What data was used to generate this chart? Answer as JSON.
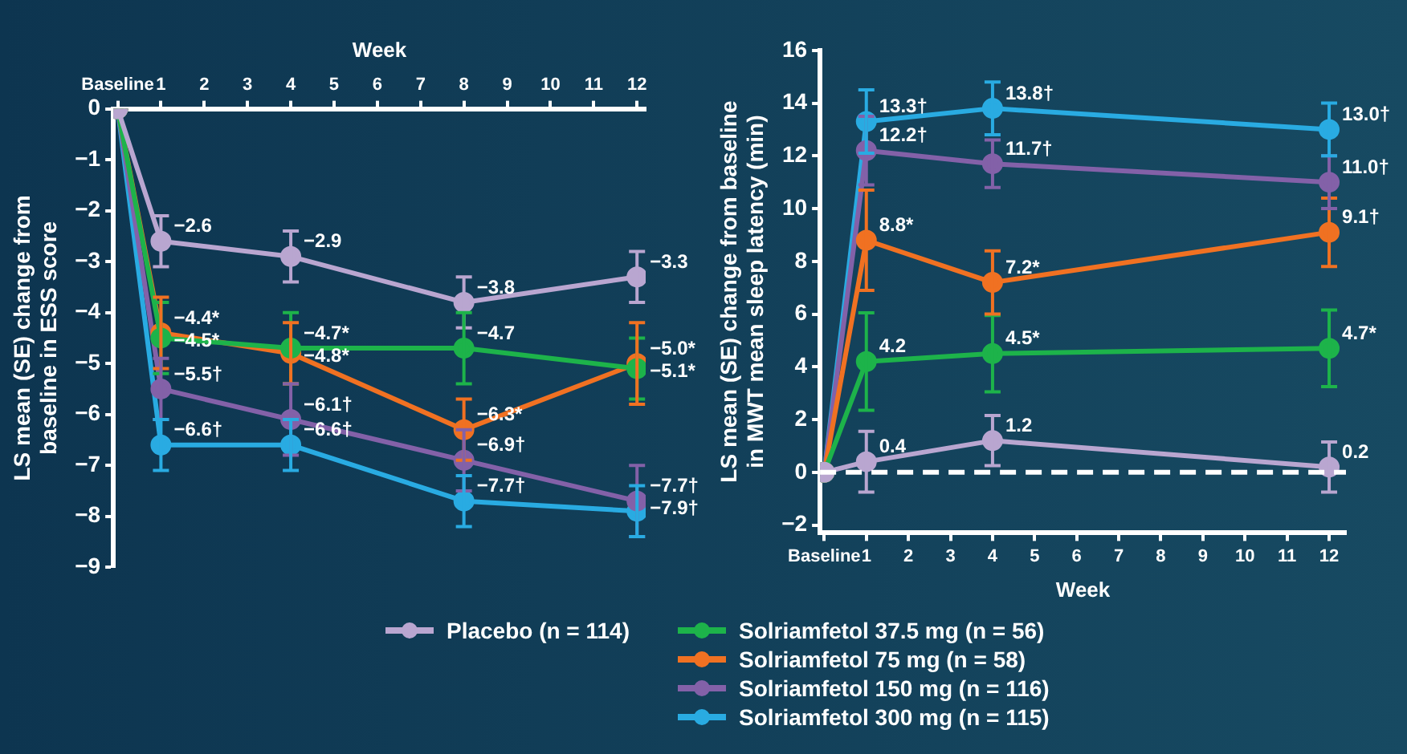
{
  "chart_data": [
    {
      "type": "line",
      "xlabel": "Week",
      "ylabel": "LS mean (SE) change from baseline in ESS score",
      "x": [
        0,
        1,
        4,
        8,
        12
      ],
      "xlim": [
        -0.1,
        12.2
      ],
      "xticks": [
        {
          "value": 0,
          "label": "Baseline"
        },
        1,
        2,
        3,
        4,
        5,
        6,
        7,
        8,
        9,
        10,
        11,
        12
      ],
      "ylim": [
        -9,
        0
      ],
      "yticks": [
        {
          "value": -9,
          "label": "−9"
        },
        {
          "value": -8,
          "label": "−8"
        },
        {
          "value": -7,
          "label": "−7"
        },
        {
          "value": -6,
          "label": "−6"
        },
        {
          "value": -5,
          "label": "−5"
        },
        {
          "value": -4,
          "label": "−4"
        },
        {
          "value": -3,
          "label": "−3"
        },
        {
          "value": -2,
          "label": "−2"
        },
        {
          "value": -1,
          "label": "−1"
        },
        0
      ],
      "grid": false,
      "legend": "bottom",
      "marker": "circle",
      "line_style": "solid",
      "series": [
        {
          "name": "Placebo (n = 114)",
          "color": "#b9a6d0",
          "values": [
            0,
            -2.6,
            -2.9,
            -3.8,
            -3.3
          ],
          "errors": [
            null,
            0.5,
            0.5,
            0.5,
            0.5
          ],
          "value_labels": [
            null,
            "−2.6",
            "−2.9",
            "−3.8",
            "−3.3"
          ]
        },
        {
          "name": "Solriamfetol 37.5 mg (n = 56)",
          "color": "#1db34a",
          "values": [
            0,
            -4.5,
            -4.7,
            -4.7,
            -5.1
          ],
          "errors": [
            null,
            0.7,
            0.7,
            0.7,
            0.6
          ],
          "value_labels": [
            null,
            "−4.5*",
            "−4.7*",
            "−4.7",
            "−5.1*"
          ]
        },
        {
          "name": "Solriamfetol 75 mg (n = 58)",
          "color": "#f07122",
          "values": [
            0,
            -4.4,
            -4.8,
            -6.3,
            -5.0
          ],
          "errors": [
            null,
            0.7,
            0.6,
            0.6,
            0.8
          ],
          "value_labels": [
            null,
            "−4.4*",
            "−4.8*",
            "−6.3*",
            "−5.0*"
          ]
        },
        {
          "name": "Solriamfetol 150 mg (n = 116)",
          "color": "#8361a8",
          "values": [
            0,
            -5.5,
            -6.1,
            -6.9,
            -7.7
          ],
          "errors": [
            null,
            0.6,
            0.7,
            0.6,
            0.7
          ],
          "value_labels": [
            null,
            "−5.5†",
            "−6.1†",
            "−6.9†",
            "−7.7†"
          ]
        },
        {
          "name": "Solriamfetol 300 mg (n = 115)",
          "color": "#29abe2",
          "values": [
            0,
            -6.6,
            -6.6,
            -7.7,
            -7.9
          ],
          "errors": [
            null,
            0.5,
            0.5,
            0.5,
            0.5
          ],
          "value_labels": [
            null,
            "−6.6†",
            "−6.6†",
            "−7.7†",
            "−7.9†"
          ]
        }
      ]
    },
    {
      "type": "line",
      "xlabel": "Week",
      "ylabel": "LS mean (SE) change from baseline in MWT mean sleep latency (min)",
      "x": [
        0,
        1,
        4,
        12
      ],
      "xlim": [
        -0.1,
        12.4
      ],
      "xticks": [
        {
          "value": 0,
          "label": "Baseline"
        },
        1,
        2,
        3,
        4,
        5,
        6,
        7,
        8,
        9,
        10,
        11,
        12
      ],
      "ylim": [
        -2.3,
        16
      ],
      "yticks": [
        {
          "value": -2,
          "label": "−2"
        },
        0,
        2,
        4,
        6,
        8,
        10,
        12,
        14,
        16
      ],
      "grid": false,
      "marker": "circle",
      "line_style": "solid",
      "ref_lines": [
        {
          "axis": "y",
          "value": 0,
          "color": "#ffffff",
          "line_style": "dashed"
        }
      ],
      "series": [
        {
          "color": "#b9a6d0",
          "values": [
            0,
            0.4,
            1.2,
            0.2
          ],
          "errors": [
            null,
            1.15,
            0.95,
            0.95
          ],
          "value_labels": [
            null,
            "0.4",
            "1.2",
            "0.2"
          ]
        },
        {
          "color": "#1db34a",
          "values": [
            0,
            4.2,
            4.5,
            4.7
          ],
          "errors": [
            null,
            1.85,
            1.45,
            1.45
          ],
          "value_labels": [
            null,
            "4.2",
            "4.5*",
            "4.7*"
          ]
        },
        {
          "color": "#f07122",
          "values": [
            0,
            8.8,
            7.2,
            9.1
          ],
          "errors": [
            null,
            1.9,
            1.2,
            1.3
          ],
          "value_labels": [
            null,
            "8.8*",
            "7.2*",
            "9.1†"
          ]
        },
        {
          "color": "#8361a8",
          "values": [
            0,
            12.2,
            11.7,
            11.0
          ],
          "errors": [
            null,
            1.3,
            0.9,
            1.0
          ],
          "value_labels": [
            null,
            "12.2†",
            "11.7†",
            "11.0†"
          ]
        },
        {
          "color": "#29abe2",
          "values": [
            0,
            13.3,
            13.8,
            13.0
          ],
          "errors": [
            null,
            1.2,
            1.0,
            1.0
          ],
          "value_labels": [
            null,
            "13.3†",
            "13.8†",
            "13.0†"
          ]
        }
      ]
    }
  ]
}
